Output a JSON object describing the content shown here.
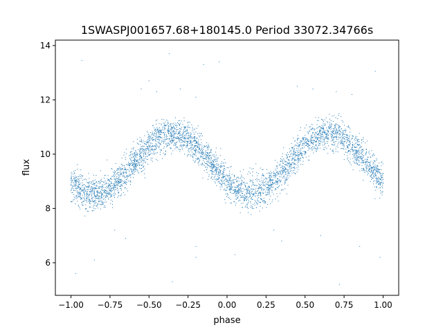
{
  "chart_data": {
    "type": "scatter",
    "title": "1SWASPJ001657.68+180145.0 Period 33072.34766s",
    "xlabel": "phase",
    "ylabel": "flux",
    "xlim": [
      -1.1,
      1.1
    ],
    "ylim": [
      4.8,
      14.2
    ],
    "xticks": [
      -1.0,
      -0.75,
      -0.5,
      -0.25,
      0.0,
      0.25,
      0.5,
      0.75,
      1.0
    ],
    "xtick_labels": [
      "−1.00",
      "−0.75",
      "−0.50",
      "−0.25",
      "0.00",
      "0.25",
      "0.50",
      "0.75",
      "1.00"
    ],
    "yticks": [
      6,
      8,
      10,
      12,
      14
    ],
    "ytick_labels": [
      "6",
      "8",
      "10",
      "12",
      "14"
    ],
    "grid": false,
    "marker_color": "#1f77b4",
    "curve_model": {
      "description": "sinusoidal light curve, period 1 in phase",
      "mean": 9.65,
      "amplitude": 1.1,
      "minimum_phase": 0.15,
      "scatter_sigma": 0.3
    },
    "series": [
      {
        "points": [
          [
            -1.0,
            8.9
          ],
          [
            -0.95,
            8.6
          ],
          [
            -0.9,
            8.55
          ],
          [
            -0.85,
            8.5
          ],
          [
            -0.8,
            8.55
          ],
          [
            -0.75,
            8.9
          ],
          [
            -0.7,
            9.3
          ],
          [
            -0.65,
            9.8
          ],
          [
            -0.6,
            10.2
          ],
          [
            -0.55,
            10.55
          ],
          [
            -0.5,
            10.7
          ],
          [
            -0.45,
            10.8
          ],
          [
            -0.4,
            10.75
          ],
          [
            -0.35,
            10.7
          ],
          [
            -0.3,
            10.6
          ],
          [
            -0.25,
            10.45
          ],
          [
            -0.2,
            10.2
          ],
          [
            -0.15,
            9.85
          ],
          [
            -0.1,
            9.4
          ],
          [
            -0.05,
            9.0
          ],
          [
            0.0,
            8.75
          ],
          [
            0.05,
            8.6
          ],
          [
            0.1,
            8.55
          ],
          [
            0.15,
            8.5
          ],
          [
            0.2,
            8.55
          ],
          [
            0.25,
            8.9
          ],
          [
            0.3,
            9.3
          ],
          [
            0.35,
            9.8
          ],
          [
            0.4,
            10.2
          ],
          [
            0.45,
            10.55
          ],
          [
            0.5,
            10.7
          ],
          [
            0.55,
            10.8
          ],
          [
            0.6,
            10.75
          ],
          [
            0.65,
            10.7
          ],
          [
            0.7,
            10.6
          ],
          [
            0.75,
            10.45
          ],
          [
            0.8,
            10.2
          ],
          [
            0.85,
            9.85
          ],
          [
            0.9,
            9.6
          ],
          [
            0.95,
            9.4
          ],
          [
            1.0,
            9.3
          ],
          [
            -0.55,
            12.4
          ],
          [
            -0.5,
            12.7
          ],
          [
            -0.45,
            12.3
          ],
          [
            -0.3,
            12.4
          ],
          [
            -0.2,
            12.1
          ],
          [
            0.45,
            12.5
          ],
          [
            0.55,
            12.4
          ],
          [
            0.7,
            12.3
          ],
          [
            0.8,
            12.2
          ],
          [
            0.95,
            13.05
          ],
          [
            -0.93,
            13.45
          ],
          [
            -0.37,
            13.7
          ],
          [
            -0.15,
            13.3
          ],
          [
            -0.05,
            13.4
          ],
          [
            -0.72,
            7.2
          ],
          [
            -0.65,
            6.9
          ],
          [
            -0.2,
            6.6
          ],
          [
            0.05,
            6.3
          ],
          [
            0.3,
            7.2
          ],
          [
            0.35,
            6.8
          ],
          [
            0.6,
            7.0
          ],
          [
            0.85,
            6.6
          ],
          [
            0.98,
            6.2
          ],
          [
            -0.97,
            5.6
          ],
          [
            -0.35,
            5.3
          ],
          [
            0.72,
            5.2
          ],
          [
            -0.2,
            6.2
          ],
          [
            -0.85,
            6.1
          ]
        ]
      }
    ]
  }
}
